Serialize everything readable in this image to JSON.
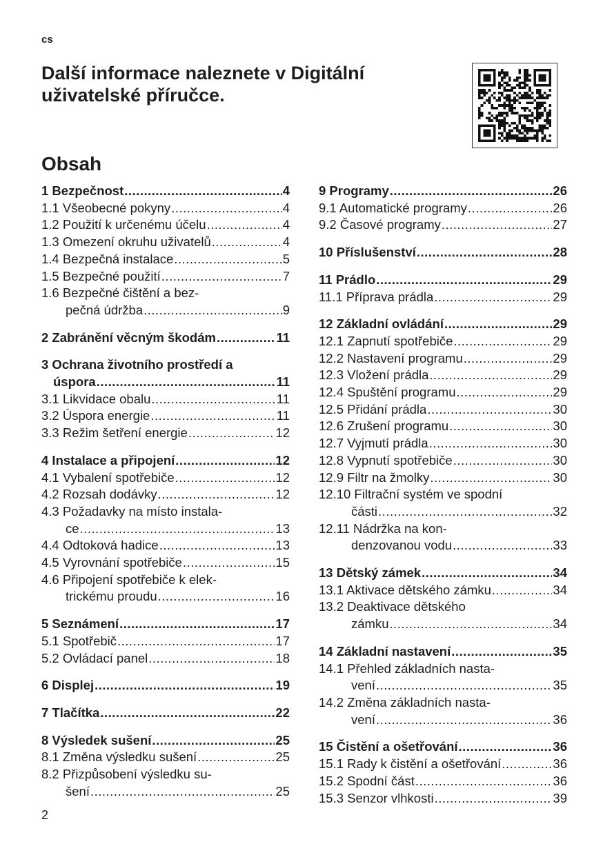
{
  "header": {
    "lang": "cs",
    "title": "Další informace naleznete v Digitální uživatelské příručce.",
    "qr_icon": "qr-code-icon"
  },
  "toc": {
    "heading": "Obsah",
    "left": [
      [
        {
          "t": "1 Bezpečnost",
          "p": "4",
          "m": true
        },
        {
          "t": "1.1 Všeobecné pokyny",
          "p": "4"
        },
        {
          "t": "1.2 Použití k určenému účelu",
          "p": "4"
        },
        {
          "t": "1.3 Omezení okruhu uživatelů",
          "p": "4"
        },
        {
          "t": "1.4 Bezpečná instalace",
          "p": "5"
        },
        {
          "t": "1.5 Bezpečné použití",
          "p": "7"
        },
        {
          "t": "1.6 Bezpečné čištění a bez-",
          "t2": "pečná údržba",
          "p": "9"
        }
      ],
      [
        {
          "t": "2 Zabránění věcným škodám",
          "p": "11",
          "m": true
        }
      ],
      [
        {
          "t": "3 Ochrana životního prostředí a",
          "t2": "úspora",
          "p": "11",
          "m": true,
          "ind": "narrow"
        },
        {
          "t": "3.1 Likvidace obalu",
          "p": "11"
        },
        {
          "t": "3.2 Úspora energie",
          "p": "11"
        },
        {
          "t": "3.3 Režim šetření energie",
          "p": "12"
        }
      ],
      [
        {
          "t": "4 Instalace a připojení",
          "p": "12",
          "m": true
        },
        {
          "t": "4.1 Vybalení spotřebiče",
          "p": "12"
        },
        {
          "t": "4.2 Rozsah dodávky",
          "p": "12"
        },
        {
          "t": "4.3 Požadavky na místo instala-",
          "t2": "ce",
          "p": "13"
        },
        {
          "t": "4.4 Odtoková hadice",
          "p": "13"
        },
        {
          "t": "4.5 Vyrovnání spotřebiče",
          "p": "15"
        },
        {
          "t": "4.6 Připojení spotřebiče k elek-",
          "t2": "trickému proudu",
          "p": "16"
        }
      ],
      [
        {
          "t": "5 Seznámení",
          "p": "17",
          "m": true
        },
        {
          "t": "5.1 Spotřebič",
          "p": "17"
        },
        {
          "t": "5.2 Ovládací panel",
          "p": "18"
        }
      ],
      [
        {
          "t": "6 Displej",
          "p": "19",
          "m": true
        }
      ],
      [
        {
          "t": "7 Tlačítka",
          "p": "22",
          "m": true
        }
      ],
      [
        {
          "t": "8 Výsledek sušení",
          "p": "25",
          "m": true
        },
        {
          "t": "8.1 Změna výsledku sušení",
          "p": "25"
        },
        {
          "t": "8.2 Přizpůsobení výsledku su-",
          "t2": "šení",
          "p": "25"
        }
      ]
    ],
    "right": [
      [
        {
          "t": "9 Programy",
          "p": "26",
          "m": true
        },
        {
          "t": "9.1 Automatické programy",
          "p": "26"
        },
        {
          "t": "9.2 Časové programy",
          "p": "27"
        }
      ],
      [
        {
          "t": "10 Příslušenství",
          "p": "28",
          "m": true
        }
      ],
      [
        {
          "t": "11 Prádlo",
          "p": "29",
          "m": true
        },
        {
          "t": "11.1 Příprava prádla",
          "p": "29"
        }
      ],
      [
        {
          "t": "12 Základní ovládání",
          "p": "29",
          "m": true
        },
        {
          "t": "12.1 Zapnutí spotřebiče",
          "p": "29"
        },
        {
          "t": "12.2 Nastavení programu",
          "p": "29"
        },
        {
          "t": "12.3 Vložení prádla",
          "p": "29"
        },
        {
          "t": "12.4 Spuštění programu",
          "p": "29"
        },
        {
          "t": "12.5 Přidání prádla",
          "p": "30"
        },
        {
          "t": "12.6 Zrušení programu",
          "p": "30"
        },
        {
          "t": "12.7 Vyjmutí prádla",
          "p": "30"
        },
        {
          "t": "12.8 Vypnutí spotřebiče",
          "p": "30"
        },
        {
          "t": "12.9 Filtr na žmolky",
          "p": "30"
        },
        {
          "t": "12.10 Filtrační systém ve spodní",
          "t2": "části",
          "p": "32",
          "ind": "wide"
        },
        {
          "t": "12.11 Nádržka na kon-",
          "t2": "denzovanou vodu",
          "p": "33",
          "ind": "wide"
        }
      ],
      [
        {
          "t": "13 Dětský zámek",
          "p": "34",
          "m": true
        },
        {
          "t": "13.1 Aktivace dětského zámku",
          "p": "34"
        },
        {
          "t": "13.2 Deaktivace dětského",
          "t2": "zámku",
          "p": "34",
          "ind": "wide"
        }
      ],
      [
        {
          "t": "14 Základní nastavení",
          "p": "35",
          "m": true
        },
        {
          "t": "14.1 Přehled základních nasta-",
          "t2": "vení",
          "p": "35",
          "ind": "wide"
        },
        {
          "t": "14.2 Změna základních nasta-",
          "t2": "vení",
          "p": "36",
          "ind": "wide"
        }
      ],
      [
        {
          "t": "15 Čistění a ošetřování",
          "p": "36",
          "m": true
        },
        {
          "t": "15.1 Rady k čistění a ošetřování",
          "p": "36"
        },
        {
          "t": "15.2 Spodní část",
          "p": "36"
        },
        {
          "t": "15.3 Senzor vlhkosti",
          "p": "39"
        }
      ]
    ]
  },
  "footer": {
    "page_number": "2"
  }
}
